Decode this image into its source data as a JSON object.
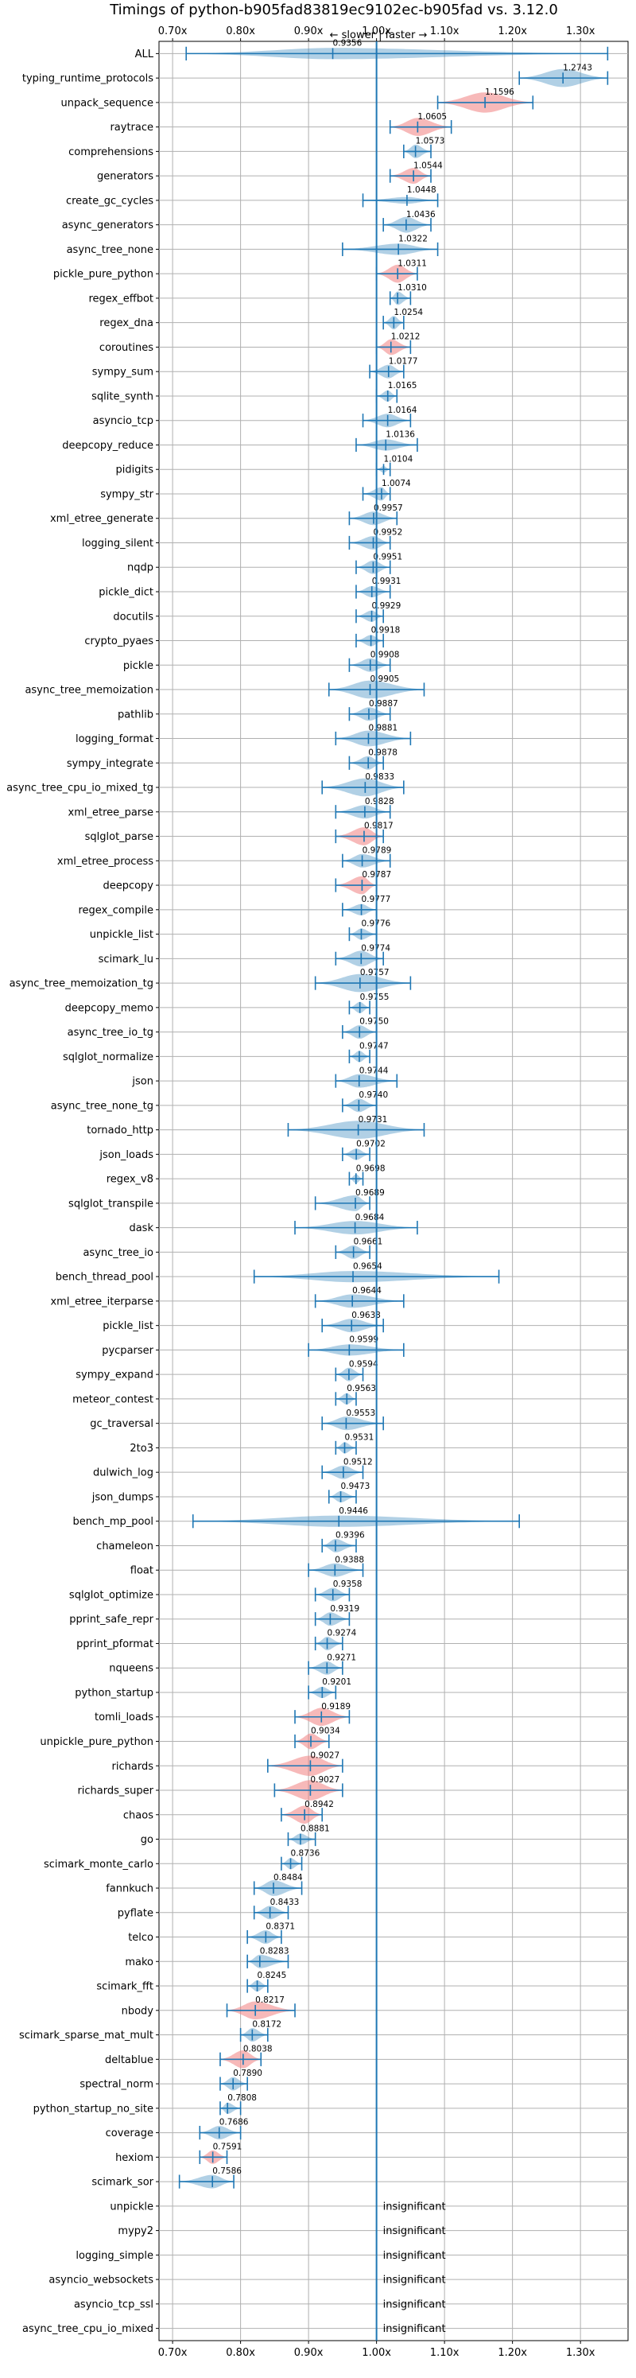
{
  "chart_data": {
    "type": "violin",
    "title": "Timings of python-b905fad83819ec9102ec-b905fad vs. 3.12.0",
    "direction_labels": {
      "slower": "← slower",
      "separator": " | ",
      "faster": "faster →"
    },
    "xlim": [
      0.68,
      1.37
    ],
    "xticks": [
      0.7,
      0.8,
      0.9,
      1.0,
      1.1,
      1.2,
      1.3
    ],
    "xtick_labels": [
      "0.70x",
      "0.80x",
      "0.90x",
      "1.00x",
      "1.10x",
      "1.20x",
      "1.30x"
    ],
    "reference_line": 1.0,
    "grid": true,
    "insignificant_label": "insignificant",
    "colors": {
      "normal": "#1f77b4",
      "highlight": "#f08080",
      "grid": "#b0b0b0",
      "ref_line": "#1f77b4"
    },
    "benchmarks": [
      {
        "name": "ALL",
        "mean": 0.9356,
        "min": 0.72,
        "max": 1.34,
        "width": 0.5,
        "highlight": false
      },
      {
        "name": "typing_runtime_protocols",
        "mean": 1.2743,
        "min": 1.21,
        "max": 1.34,
        "width": 0.8,
        "highlight": false
      },
      {
        "name": "unpack_sequence",
        "mean": 1.1596,
        "min": 1.09,
        "max": 1.23,
        "width": 0.9,
        "highlight": true
      },
      {
        "name": "raytrace",
        "mean": 1.0605,
        "min": 1.02,
        "max": 1.11,
        "width": 0.8,
        "highlight": true
      },
      {
        "name": "comprehensions",
        "mean": 1.0573,
        "min": 1.04,
        "max": 1.08,
        "width": 0.6,
        "highlight": false
      },
      {
        "name": "generators",
        "mean": 1.0544,
        "min": 1.02,
        "max": 1.08,
        "width": 0.7,
        "highlight": true
      },
      {
        "name": "create_gc_cycles",
        "mean": 1.0448,
        "min": 0.98,
        "max": 1.09,
        "width": 0.3,
        "highlight": false
      },
      {
        "name": "async_generators",
        "mean": 1.0436,
        "min": 1.01,
        "max": 1.08,
        "width": 0.7,
        "highlight": false
      },
      {
        "name": "async_tree_none",
        "mean": 1.0322,
        "min": 0.95,
        "max": 1.09,
        "width": 0.5,
        "highlight": false
      },
      {
        "name": "pickle_pure_python",
        "mean": 1.0311,
        "min": 1.0,
        "max": 1.06,
        "width": 0.8,
        "highlight": true
      },
      {
        "name": "regex_effbot",
        "mean": 1.031,
        "min": 1.02,
        "max": 1.05,
        "width": 0.6,
        "highlight": false
      },
      {
        "name": "regex_dna",
        "mean": 1.0254,
        "min": 1.01,
        "max": 1.04,
        "width": 0.6,
        "highlight": false
      },
      {
        "name": "coroutines",
        "mean": 1.0212,
        "min": 1.0,
        "max": 1.05,
        "width": 0.7,
        "highlight": true
      },
      {
        "name": "sympy_sum",
        "mean": 1.0177,
        "min": 0.99,
        "max": 1.04,
        "width": 0.6,
        "highlight": false
      },
      {
        "name": "sqlite_synth",
        "mean": 1.0165,
        "min": 1.0,
        "max": 1.03,
        "width": 0.5,
        "highlight": false
      },
      {
        "name": "asyncio_tcp",
        "mean": 1.0164,
        "min": 0.98,
        "max": 1.05,
        "width": 0.6,
        "highlight": false
      },
      {
        "name": "deepcopy_reduce",
        "mean": 1.0136,
        "min": 0.97,
        "max": 1.06,
        "width": 0.5,
        "highlight": false
      },
      {
        "name": "pidigits",
        "mean": 1.0104,
        "min": 1.0,
        "max": 1.02,
        "width": 0.3,
        "highlight": false
      },
      {
        "name": "sympy_str",
        "mean": 1.0074,
        "min": 0.98,
        "max": 1.02,
        "width": 0.6,
        "highlight": false
      },
      {
        "name": "xml_etree_generate",
        "mean": 0.9957,
        "min": 0.96,
        "max": 1.03,
        "width": 0.6,
        "highlight": false
      },
      {
        "name": "logging_silent",
        "mean": 0.9952,
        "min": 0.96,
        "max": 1.02,
        "width": 0.6,
        "highlight": false
      },
      {
        "name": "nqdp",
        "mean": 0.9951,
        "min": 0.97,
        "max": 1.02,
        "width": 0.6,
        "highlight": false
      },
      {
        "name": "pickle_dict",
        "mean": 0.9931,
        "min": 0.97,
        "max": 1.02,
        "width": 0.5,
        "highlight": false
      },
      {
        "name": "docutils",
        "mean": 0.9929,
        "min": 0.97,
        "max": 1.01,
        "width": 0.5,
        "highlight": false
      },
      {
        "name": "crypto_pyaes",
        "mean": 0.9918,
        "min": 0.97,
        "max": 1.01,
        "width": 0.5,
        "highlight": false
      },
      {
        "name": "pickle",
        "mean": 0.9908,
        "min": 0.96,
        "max": 1.02,
        "width": 0.6,
        "highlight": false
      },
      {
        "name": "async_tree_memoization",
        "mean": 0.9905,
        "min": 0.93,
        "max": 1.07,
        "width": 0.8,
        "highlight": false
      },
      {
        "name": "pathlib",
        "mean": 0.9887,
        "min": 0.96,
        "max": 1.02,
        "width": 0.6,
        "highlight": false
      },
      {
        "name": "logging_format",
        "mean": 0.9881,
        "min": 0.94,
        "max": 1.05,
        "width": 0.7,
        "highlight": false
      },
      {
        "name": "sympy_integrate",
        "mean": 0.9878,
        "min": 0.96,
        "max": 1.01,
        "width": 0.6,
        "highlight": false
      },
      {
        "name": "async_tree_cpu_io_mixed_tg",
        "mean": 0.9833,
        "min": 0.92,
        "max": 1.04,
        "width": 0.8,
        "highlight": false
      },
      {
        "name": "xml_etree_parse",
        "mean": 0.9828,
        "min": 0.94,
        "max": 1.02,
        "width": 0.6,
        "highlight": false
      },
      {
        "name": "sqlglot_parse",
        "mean": 0.9817,
        "min": 0.94,
        "max": 1.01,
        "width": 0.8,
        "highlight": true
      },
      {
        "name": "xml_etree_process",
        "mean": 0.9789,
        "min": 0.95,
        "max": 1.02,
        "width": 0.6,
        "highlight": false
      },
      {
        "name": "deepcopy",
        "mean": 0.9787,
        "min": 0.94,
        "max": 1.0,
        "width": 0.8,
        "highlight": true
      },
      {
        "name": "regex_compile",
        "mean": 0.9777,
        "min": 0.95,
        "max": 1.0,
        "width": 0.5,
        "highlight": false
      },
      {
        "name": "unpickle_list",
        "mean": 0.9776,
        "min": 0.96,
        "max": 1.0,
        "width": 0.5,
        "highlight": false
      },
      {
        "name": "scimark_lu",
        "mean": 0.9774,
        "min": 0.94,
        "max": 1.01,
        "width": 0.7,
        "highlight": false
      },
      {
        "name": "async_tree_memoization_tg",
        "mean": 0.9757,
        "min": 0.91,
        "max": 1.05,
        "width": 0.8,
        "highlight": false
      },
      {
        "name": "deepcopy_memo",
        "mean": 0.9755,
        "min": 0.96,
        "max": 0.99,
        "width": 0.5,
        "highlight": false
      },
      {
        "name": "async_tree_io_tg",
        "mean": 0.975,
        "min": 0.95,
        "max": 1.0,
        "width": 0.6,
        "highlight": false
      },
      {
        "name": "sqlglot_normalize",
        "mean": 0.9747,
        "min": 0.96,
        "max": 0.99,
        "width": 0.5,
        "highlight": false
      },
      {
        "name": "json",
        "mean": 0.9744,
        "min": 0.94,
        "max": 1.03,
        "width": 0.6,
        "highlight": false
      },
      {
        "name": "async_tree_none_tg",
        "mean": 0.974,
        "min": 0.95,
        "max": 1.0,
        "width": 0.6,
        "highlight": false
      },
      {
        "name": "tornado_http",
        "mean": 0.9731,
        "min": 0.87,
        "max": 1.07,
        "width": 0.8,
        "highlight": false
      },
      {
        "name": "json_loads",
        "mean": 0.9702,
        "min": 0.95,
        "max": 0.99,
        "width": 0.5,
        "highlight": false
      },
      {
        "name": "regex_v8",
        "mean": 0.9698,
        "min": 0.96,
        "max": 0.98,
        "width": 0.4,
        "highlight": false
      },
      {
        "name": "sqlglot_transpile",
        "mean": 0.9689,
        "min": 0.91,
        "max": 0.99,
        "width": 0.7,
        "highlight": false
      },
      {
        "name": "dask",
        "mean": 0.9684,
        "min": 0.88,
        "max": 1.06,
        "width": 0.6,
        "highlight": false
      },
      {
        "name": "async_tree_io",
        "mean": 0.9661,
        "min": 0.94,
        "max": 0.99,
        "width": 0.6,
        "highlight": false
      },
      {
        "name": "bench_thread_pool",
        "mean": 0.9654,
        "min": 0.82,
        "max": 1.18,
        "width": 0.5,
        "highlight": false
      },
      {
        "name": "xml_etree_iterparse",
        "mean": 0.9644,
        "min": 0.91,
        "max": 1.04,
        "width": 0.6,
        "highlight": false
      },
      {
        "name": "pickle_list",
        "mean": 0.9633,
        "min": 0.92,
        "max": 1.01,
        "width": 0.6,
        "highlight": false
      },
      {
        "name": "pycparser",
        "mean": 0.9599,
        "min": 0.9,
        "max": 1.04,
        "width": 0.5,
        "highlight": false
      },
      {
        "name": "sympy_expand",
        "mean": 0.9594,
        "min": 0.94,
        "max": 0.98,
        "width": 0.6,
        "highlight": false
      },
      {
        "name": "meteor_contest",
        "mean": 0.9563,
        "min": 0.94,
        "max": 0.97,
        "width": 0.5,
        "highlight": false
      },
      {
        "name": "gc_traversal",
        "mean": 0.9553,
        "min": 0.92,
        "max": 1.01,
        "width": 0.6,
        "highlight": false
      },
      {
        "name": "2to3",
        "mean": 0.9531,
        "min": 0.94,
        "max": 0.97,
        "width": 0.5,
        "highlight": false
      },
      {
        "name": "dulwich_log",
        "mean": 0.9512,
        "min": 0.92,
        "max": 0.98,
        "width": 0.6,
        "highlight": false
      },
      {
        "name": "json_dumps",
        "mean": 0.9473,
        "min": 0.93,
        "max": 0.97,
        "width": 0.5,
        "highlight": false
      },
      {
        "name": "bench_mp_pool",
        "mean": 0.9446,
        "min": 0.73,
        "max": 1.21,
        "width": 0.5,
        "highlight": false
      },
      {
        "name": "chameleon",
        "mean": 0.9396,
        "min": 0.92,
        "max": 0.97,
        "width": 0.6,
        "highlight": false
      },
      {
        "name": "float",
        "mean": 0.9388,
        "min": 0.9,
        "max": 0.98,
        "width": 0.6,
        "highlight": false
      },
      {
        "name": "sqlglot_optimize",
        "mean": 0.9358,
        "min": 0.91,
        "max": 0.96,
        "width": 0.6,
        "highlight": false
      },
      {
        "name": "pprint_safe_repr",
        "mean": 0.9319,
        "min": 0.91,
        "max": 0.96,
        "width": 0.6,
        "highlight": false
      },
      {
        "name": "pprint_pformat",
        "mean": 0.9274,
        "min": 0.91,
        "max": 0.95,
        "width": 0.6,
        "highlight": false
      },
      {
        "name": "nqueens",
        "mean": 0.9271,
        "min": 0.9,
        "max": 0.95,
        "width": 0.6,
        "highlight": false
      },
      {
        "name": "python_startup",
        "mean": 0.9201,
        "min": 0.9,
        "max": 0.94,
        "width": 0.5,
        "highlight": false
      },
      {
        "name": "tomli_loads",
        "mean": 0.9189,
        "min": 0.88,
        "max": 0.96,
        "width": 0.8,
        "highlight": true
      },
      {
        "name": "unpickle_pure_python",
        "mean": 0.9034,
        "min": 0.88,
        "max": 0.93,
        "width": 0.7,
        "highlight": true
      },
      {
        "name": "richards",
        "mean": 0.9027,
        "min": 0.84,
        "max": 0.95,
        "width": 0.9,
        "highlight": true
      },
      {
        "name": "richards_super",
        "mean": 0.9027,
        "min": 0.85,
        "max": 0.95,
        "width": 0.9,
        "highlight": true
      },
      {
        "name": "chaos",
        "mean": 0.8942,
        "min": 0.86,
        "max": 0.92,
        "width": 0.8,
        "highlight": true
      },
      {
        "name": "go",
        "mean": 0.8881,
        "min": 0.87,
        "max": 0.91,
        "width": 0.5,
        "highlight": false
      },
      {
        "name": "scimark_monte_carlo",
        "mean": 0.8736,
        "min": 0.86,
        "max": 0.89,
        "width": 0.5,
        "highlight": false
      },
      {
        "name": "fannkuch",
        "mean": 0.8484,
        "min": 0.82,
        "max": 0.89,
        "width": 0.7,
        "highlight": false
      },
      {
        "name": "pyflate",
        "mean": 0.8433,
        "min": 0.82,
        "max": 0.87,
        "width": 0.6,
        "highlight": false
      },
      {
        "name": "telco",
        "mean": 0.8371,
        "min": 0.81,
        "max": 0.86,
        "width": 0.6,
        "highlight": false
      },
      {
        "name": "mako",
        "mean": 0.8283,
        "min": 0.81,
        "max": 0.87,
        "width": 0.6,
        "highlight": false
      },
      {
        "name": "scimark_fft",
        "mean": 0.8245,
        "min": 0.81,
        "max": 0.84,
        "width": 0.5,
        "highlight": false
      },
      {
        "name": "nbody",
        "mean": 0.8217,
        "min": 0.78,
        "max": 0.88,
        "width": 0.8,
        "highlight": true
      },
      {
        "name": "scimark_sparse_mat_mult",
        "mean": 0.8172,
        "min": 0.8,
        "max": 0.84,
        "width": 0.6,
        "highlight": false
      },
      {
        "name": "deltablue",
        "mean": 0.8038,
        "min": 0.77,
        "max": 0.83,
        "width": 0.8,
        "highlight": true
      },
      {
        "name": "spectral_norm",
        "mean": 0.789,
        "min": 0.77,
        "max": 0.81,
        "width": 0.6,
        "highlight": false
      },
      {
        "name": "python_startup_no_site",
        "mean": 0.7808,
        "min": 0.77,
        "max": 0.8,
        "width": 0.5,
        "highlight": false
      },
      {
        "name": "coverage",
        "mean": 0.7686,
        "min": 0.74,
        "max": 0.8,
        "width": 0.6,
        "highlight": false
      },
      {
        "name": "hexiom",
        "mean": 0.7591,
        "min": 0.74,
        "max": 0.78,
        "width": 0.6,
        "highlight": true
      },
      {
        "name": "scimark_sor",
        "mean": 0.7586,
        "min": 0.71,
        "max": 0.79,
        "width": 0.6,
        "highlight": false
      },
      {
        "name": "unpickle",
        "mean": null,
        "insignificant": true
      },
      {
        "name": "mypy2",
        "mean": null,
        "insignificant": true
      },
      {
        "name": "logging_simple",
        "mean": null,
        "insignificant": true
      },
      {
        "name": "asyncio_websockets",
        "mean": null,
        "insignificant": true
      },
      {
        "name": "asyncio_tcp_ssl",
        "mean": null,
        "insignificant": true
      },
      {
        "name": "async_tree_cpu_io_mixed",
        "mean": null,
        "insignificant": true
      }
    ]
  }
}
